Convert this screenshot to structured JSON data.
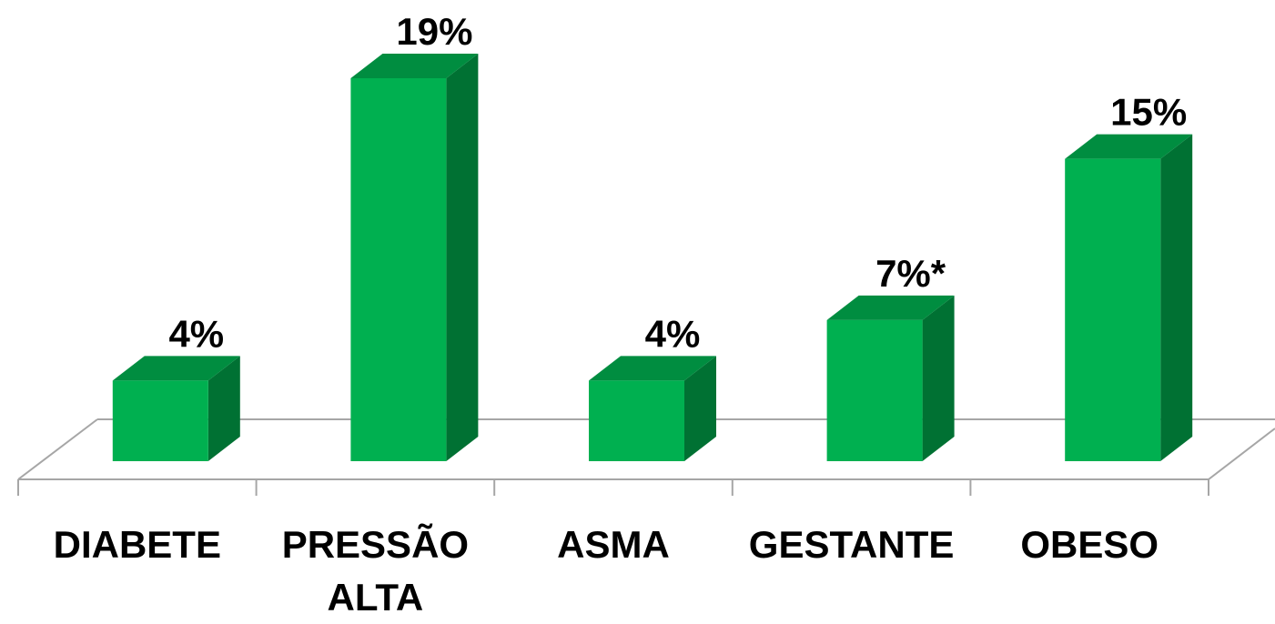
{
  "chart_data": {
    "type": "bar3d",
    "categories": [
      "DIABETE",
      "PRESSÃO ALTA",
      "ASMA",
      "GESTANTE",
      "OBESO"
    ],
    "values": [
      4,
      19,
      4,
      7,
      15
    ],
    "value_labels": [
      "4%",
      "19%",
      "4%",
      "7%*",
      "15%"
    ],
    "color": "#00b050"
  }
}
